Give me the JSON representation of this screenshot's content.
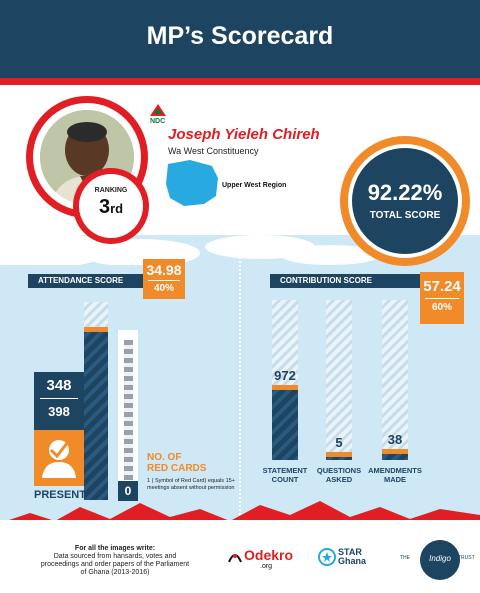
{
  "header": {
    "title": "MP’s Scorecard"
  },
  "profile": {
    "party": "NDC",
    "name": "Joseph Yieleh Chireh",
    "constituency": "Wa West Constituency",
    "region": "Upper West Region",
    "ranking_label": "RANKING",
    "ranking_value": "3",
    "ranking_suffix": "rd"
  },
  "total": {
    "value": "92.22%",
    "label": "TOTAL SCORE"
  },
  "attendance": {
    "label": "ATTENDANCE SCORE",
    "score": "34.98",
    "weight": "40%",
    "present": "348",
    "total": "398",
    "present_label": "PRESENT",
    "present_fraction": 0.874,
    "red_cards": "0",
    "red_cards_title_1": "NO. OF",
    "red_cards_title_2": "RED CARDS",
    "red_cards_note": "1 ( Symbol of Red Card) equals 15+ meetings absent without permission"
  },
  "contribution": {
    "label": "CONTRIBUTION SCORE",
    "score": "57.24",
    "weight": "60%",
    "bars": [
      {
        "value": "972",
        "label_1": "STATEMENT",
        "label_2": "COUNT",
        "fraction": 0.47
      },
      {
        "value": "5",
        "label_1": "QUESTIONS",
        "label_2": "ASKED",
        "fraction": 0.05
      },
      {
        "value": "38",
        "label_1": "AMENDMENTS",
        "label_2": "MADE",
        "fraction": 0.07
      }
    ]
  },
  "footer": {
    "line1": "For all the images write:",
    "line2": "Data sourced from hansards,  votes and",
    "line3": "proceedings and order papers of the Parliament",
    "line4": "of Ghana (2013-2016)",
    "logo1": "Odekro",
    "logo1_sub": ".org",
    "logo2": "STAR",
    "logo2_b": "Ghana",
    "logo3_a": "THE",
    "logo3_b": "Indigo",
    "logo3_c": "TRUST"
  },
  "colors": {
    "navy": "#1d4461",
    "red": "#e01e23",
    "orange": "#f18a28",
    "sky": "#cfe8f6"
  }
}
